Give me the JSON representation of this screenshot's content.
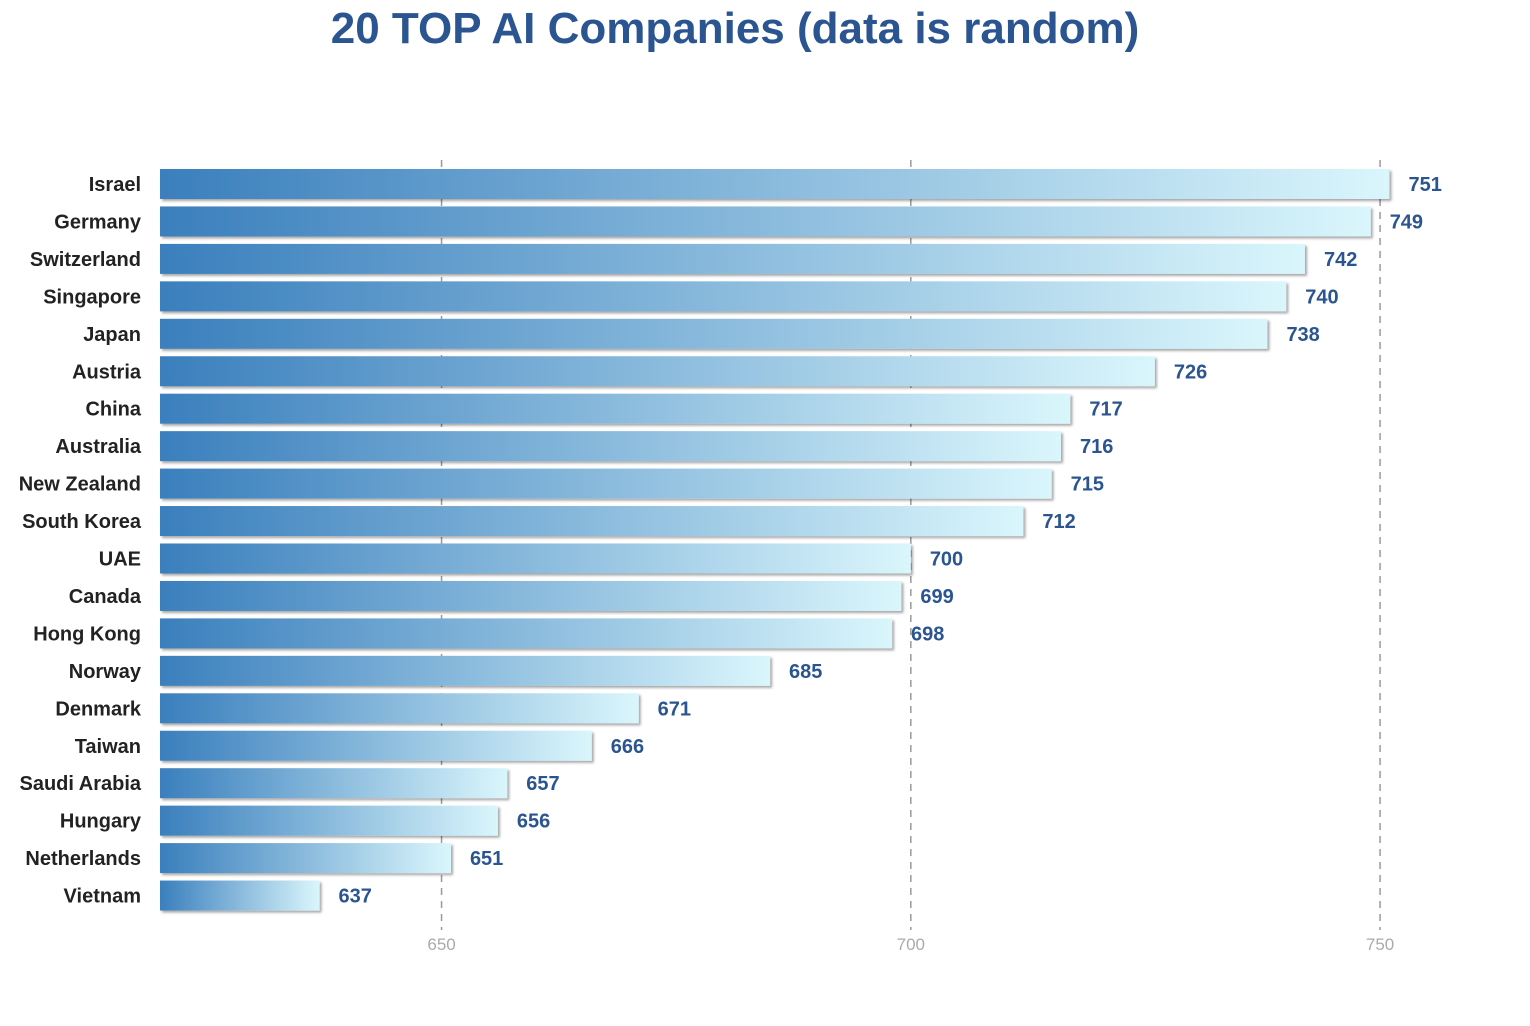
{
  "chart_data": {
    "type": "bar",
    "orientation": "horizontal",
    "title": "20 TOP AI Companies (data is random)",
    "xlabel": "",
    "ylabel": "",
    "categories": [
      "Israel",
      "Germany",
      "Switzerland",
      "Singapore",
      "Japan",
      "Austria",
      "China",
      "Australia",
      "New Zealand",
      "South Korea",
      "UAE",
      "Canada",
      "Hong Kong",
      "Norway",
      "Denmark",
      "Taiwan",
      "Saudi Arabia",
      "Hungary",
      "Netherlands",
      "Vietnam"
    ],
    "values": [
      751,
      749,
      742,
      740,
      738,
      726,
      717,
      716,
      715,
      712,
      700,
      699,
      698,
      685,
      671,
      666,
      657,
      656,
      651,
      637
    ],
    "xlim": [
      620,
      755
    ],
    "x_ticks": [
      650,
      700,
      750
    ],
    "grid": "dashed vertical",
    "legend": "none",
    "colors": {
      "bar_start": "#3a7fbd",
      "bar_end": "#daf6fc",
      "title": "#2a5591",
      "value_label": "#2a5591",
      "category_label": "#222222",
      "grid": "#9a9a9a",
      "tick_label": "#aaaaaa"
    }
  }
}
